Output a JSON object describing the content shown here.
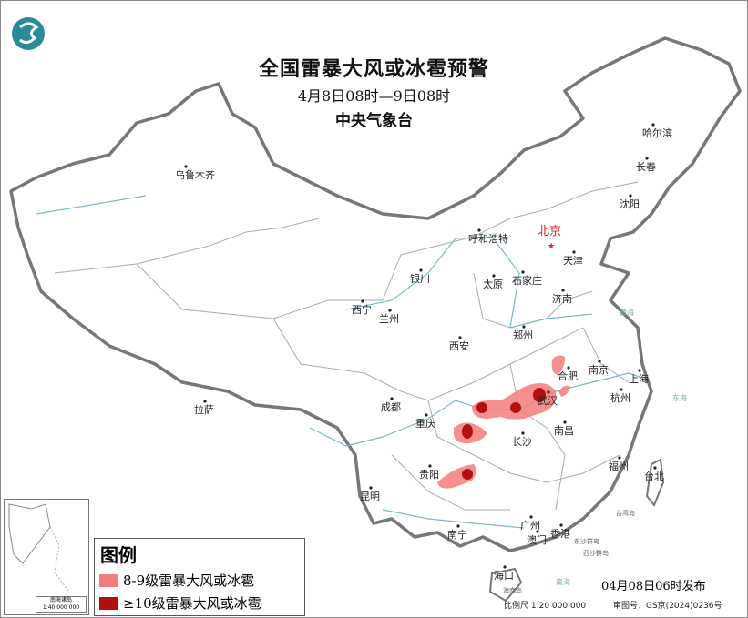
{
  "header": {
    "title": "全国雷暴大风或冰雹预警",
    "period": "4月8日08时—9日08时",
    "issuer": "中央气象台"
  },
  "logo": {
    "icon": "cma-logo",
    "color": "#2a8a9a"
  },
  "capital": {
    "name": "北京",
    "color": "#d22020"
  },
  "cities": [
    {
      "name": "乌鲁木齐"
    },
    {
      "name": "哈尔滨"
    },
    {
      "name": "长春"
    },
    {
      "name": "沈阳"
    },
    {
      "name": "呼和浩特"
    },
    {
      "name": "天津"
    },
    {
      "name": "银川"
    },
    {
      "name": "太原"
    },
    {
      "name": "石家庄"
    },
    {
      "name": "济南"
    },
    {
      "name": "西宁"
    },
    {
      "name": "兰州"
    },
    {
      "name": "郑州"
    },
    {
      "name": "西安"
    },
    {
      "name": "合肥"
    },
    {
      "name": "南京"
    },
    {
      "name": "上海"
    },
    {
      "name": "武汉"
    },
    {
      "name": "成都"
    },
    {
      "name": "杭州"
    },
    {
      "name": "拉萨"
    },
    {
      "name": "重庆"
    },
    {
      "name": "长沙"
    },
    {
      "name": "南昌"
    },
    {
      "name": "贵阳"
    },
    {
      "name": "福州"
    },
    {
      "name": "台北"
    },
    {
      "name": "昆明"
    },
    {
      "name": "南宁"
    },
    {
      "name": "广州"
    },
    {
      "name": "澳门"
    },
    {
      "name": "香港"
    },
    {
      "name": "海口"
    }
  ],
  "minor_labels": [
    "台湾岛",
    "东沙群岛",
    "西沙群岛",
    "海南岛",
    "黄海",
    "东海",
    "南海"
  ],
  "legend": {
    "title": "图例",
    "items": [
      {
        "label": "8-9级雷暴大风或冰雹",
        "color": "#f47c7c"
      },
      {
        "label": "≥10级雷暴大风或冰雹",
        "color": "#b01010"
      }
    ]
  },
  "inset": {
    "label": "南海诸岛",
    "scale": "1:40 000 000"
  },
  "footer": {
    "issued": "04月08日06时发布",
    "scale": "比例尺 1:20 000 000",
    "review": "审图号：GS京(2024)0236号"
  },
  "colors": {
    "border": "#777777",
    "river": "#7ab8cc",
    "land": "#ffffff"
  }
}
